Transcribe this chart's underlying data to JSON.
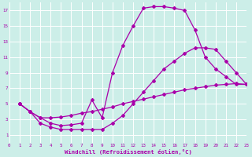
{
  "bg_color": "#cceee8",
  "line_color": "#aa00aa",
  "grid_color": "#ffffff",
  "xlabel": "Windchill (Refroidissement éolien,°C)",
  "xlim": [
    0,
    23
  ],
  "ylim": [
    0,
    18
  ],
  "xticks": [
    0,
    1,
    2,
    3,
    4,
    5,
    6,
    7,
    8,
    9,
    10,
    11,
    12,
    13,
    14,
    15,
    16,
    17,
    18,
    19,
    20,
    21,
    22,
    23
  ],
  "yticks": [
    1,
    3,
    5,
    7,
    9,
    11,
    13,
    15,
    17
  ],
  "curve1_x": [
    1,
    2,
    3,
    4,
    5,
    6,
    7,
    8,
    9,
    10,
    11,
    12,
    13,
    14,
    15,
    16,
    17,
    18,
    19,
    20,
    21,
    22,
    23
  ],
  "curve1_y": [
    5.0,
    4.0,
    3.2,
    3.2,
    3.3,
    3.5,
    3.8,
    4.0,
    4.3,
    4.6,
    5.0,
    5.3,
    5.6,
    5.9,
    6.2,
    6.5,
    6.8,
    7.0,
    7.2,
    7.4,
    7.5,
    7.6,
    7.5
  ],
  "curve2_x": [
    1,
    2,
    3,
    4,
    5,
    6,
    7,
    8,
    9,
    10,
    11,
    12,
    13,
    14,
    15,
    16,
    17,
    18,
    19,
    20,
    21,
    22,
    23
  ],
  "curve2_y": [
    5.0,
    4.0,
    3.2,
    2.5,
    2.2,
    2.3,
    2.5,
    5.5,
    3.2,
    9.0,
    12.5,
    15.0,
    17.3,
    17.5,
    17.5,
    17.3,
    17.0,
    14.5,
    11.0,
    9.5,
    8.5,
    7.5,
    7.5
  ],
  "curve3_x": [
    1,
    2,
    3,
    4,
    5,
    6,
    7,
    8,
    9,
    10,
    11,
    12,
    13,
    14,
    15,
    16,
    17,
    18,
    19,
    20,
    21,
    22,
    23
  ],
  "curve3_y": [
    5.0,
    4.0,
    2.5,
    2.0,
    1.7,
    1.7,
    1.7,
    1.7,
    1.7,
    2.5,
    3.5,
    5.0,
    6.5,
    8.0,
    9.5,
    10.5,
    11.5,
    12.2,
    12.2,
    12.0,
    10.5,
    9.0,
    7.5
  ]
}
